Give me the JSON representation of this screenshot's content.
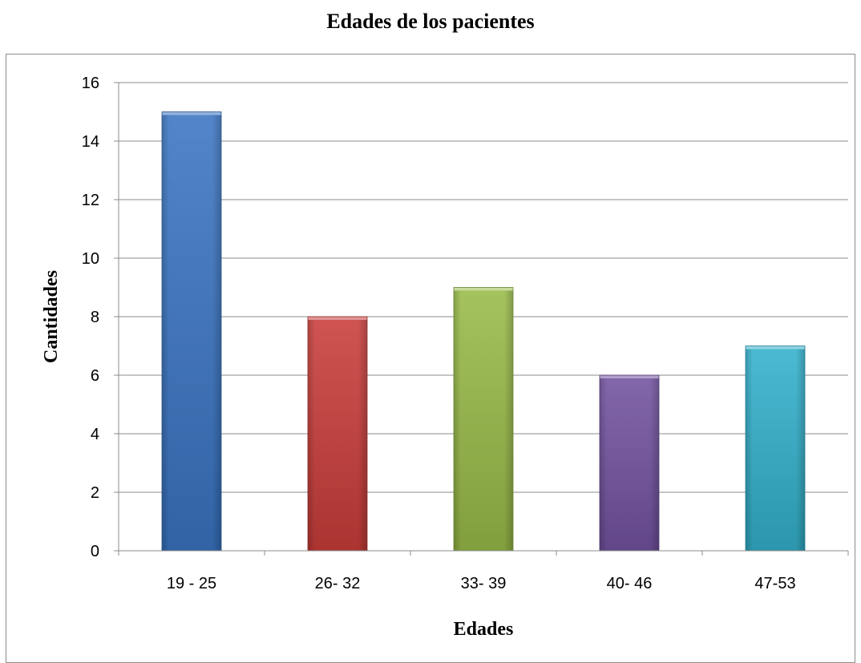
{
  "chart_data": {
    "type": "bar",
    "title": "Edades de los pacientes",
    "xlabel": "Edades",
    "ylabel": "Cantidades",
    "categories": [
      "19 - 25",
      "26- 32",
      "33- 39",
      "40- 46",
      "47-53"
    ],
    "values": [
      15,
      8,
      9,
      6,
      7
    ],
    "ylim": [
      0,
      16
    ],
    "yticks": [
      0,
      2,
      4,
      6,
      8,
      10,
      12,
      14,
      16
    ],
    "grid": true,
    "legend": "none",
    "colors": [
      "#3a74c2",
      "#c93d3a",
      "#98bb48",
      "#7252a0",
      "#33b1cc"
    ]
  }
}
